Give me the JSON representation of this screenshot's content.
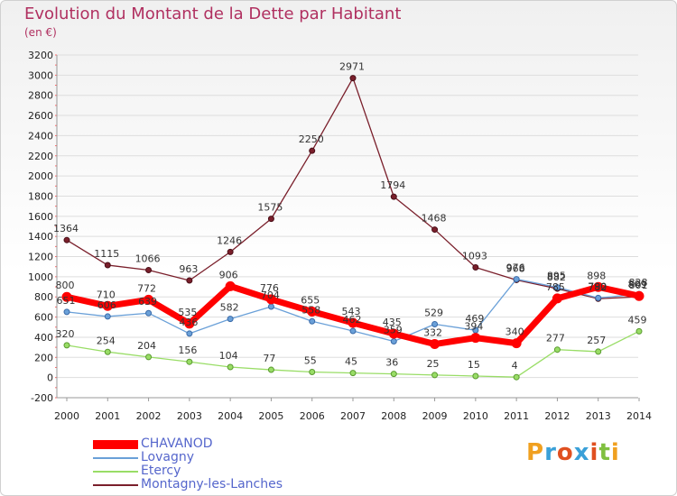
{
  "title": "Evolution du Montant de la Dette par Habitant",
  "subtitle": "(en €)",
  "logo_text": "Proxiti",
  "chart_data": {
    "type": "line",
    "title": "Evolution du Montant de la Dette par Habitant",
    "subtitle": "(en €)",
    "xlabel": "",
    "ylabel": "",
    "ylim": [
      -200,
      3200
    ],
    "yticks": [
      -200,
      0,
      200,
      400,
      600,
      800,
      1000,
      1200,
      1400,
      1600,
      1800,
      2000,
      2200,
      2400,
      2600,
      2800,
      3000,
      3200
    ],
    "grid": true,
    "legend_position": "bottom-left",
    "x": [
      2000,
      2001,
      2002,
      2003,
      2004,
      2005,
      2006,
      2007,
      2008,
      2009,
      2010,
      2011,
      2012,
      2013,
      2014
    ],
    "series": [
      {
        "name": "CHAVANOD",
        "color": "#ff0000",
        "values": [
          800,
          710,
          772,
          535,
          906,
          776,
          655,
          543,
          435,
          332,
          394,
          340,
          785,
          898,
          809
        ]
      },
      {
        "name": "Lovagny",
        "color": "#6aa0d8",
        "values": [
          651,
          606,
          639,
          436,
          582,
          704,
          558,
          462,
          359,
          529,
          469,
          976,
          895,
          790,
          828
        ]
      },
      {
        "name": "Etercy",
        "color": "#99dd66",
        "values": [
          320,
          254,
          204,
          156,
          104,
          77,
          55,
          45,
          36,
          25,
          15,
          4,
          277,
          257,
          459
        ]
      },
      {
        "name": "Montagny-les-Lanches",
        "color": "#7a1f2b",
        "values": [
          1364,
          1115,
          1066,
          963,
          1246,
          1575,
          2250,
          2971,
          1794,
          1468,
          1093,
          968,
          882,
          782,
          801
        ]
      }
    ],
    "value_labels": {
      "CHAVANOD": [
        "800",
        "710",
        "772",
        "535",
        "906",
        "776",
        "655",
        "543",
        "435",
        "332",
        "394",
        "340",
        "785",
        "898",
        "809"
      ],
      "Lovagny": [
        "651",
        "606",
        "639",
        "436",
        "582",
        "704",
        "558",
        "462",
        "359",
        "529",
        "469",
        "976",
        "895",
        "790",
        "828"
      ],
      "Etercy": [
        "320",
        "254",
        "204",
        "156",
        "104",
        "77",
        "55",
        "45",
        "36",
        "25",
        "15",
        "4",
        "277",
        "257",
        "459"
      ],
      "Montagny-les-Lanches": [
        "1364",
        "1115",
        "1066",
        "963",
        "1246",
        "1575",
        "2250",
        "2971",
        "1794",
        "1468",
        "1093",
        "968",
        "882",
        "782",
        "801"
      ]
    }
  }
}
